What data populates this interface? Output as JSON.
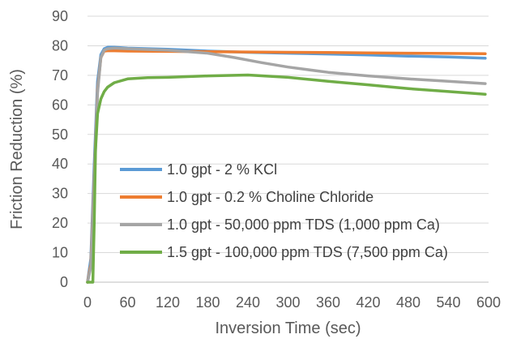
{
  "chart_data": {
    "type": "line",
    "title": "",
    "xlabel": "Inversion Time (sec)",
    "ylabel": "Friction Reduction (%)",
    "xlim": [
      0,
      600
    ],
    "ylim": [
      0,
      90
    ],
    "xticks": [
      0,
      60,
      120,
      180,
      240,
      300,
      360,
      420,
      480,
      540,
      600
    ],
    "yticks": [
      0,
      10,
      20,
      30,
      40,
      50,
      60,
      70,
      80,
      90
    ],
    "grid": "horizontal",
    "legend_position": "lower-left inside plot",
    "series": [
      {
        "name": "1.0 gpt - 2 % KCl",
        "color": "#5B9BD5",
        "x": [
          0,
          5,
          10,
          15,
          20,
          25,
          30,
          40,
          60,
          120,
          180,
          240,
          300,
          360,
          420,
          480,
          540,
          595
        ],
        "y": [
          0,
          8,
          40,
          68,
          77,
          79,
          79.5,
          79.5,
          79.2,
          78.8,
          78.2,
          77.8,
          77.5,
          77.2,
          76.9,
          76.5,
          76.2,
          75.8
        ]
      },
      {
        "name": "1.0 gpt - 0.2 % Choline Chloride",
        "color": "#ED7D31",
        "x": [
          0,
          5,
          10,
          15,
          20,
          25,
          30,
          40,
          60,
          120,
          180,
          240,
          300,
          360,
          420,
          480,
          540,
          595
        ],
        "y": [
          0,
          6,
          35,
          65,
          76,
          78.2,
          78.3,
          78.3,
          78.2,
          78.1,
          78.0,
          77.9,
          77.8,
          77.7,
          77.6,
          77.5,
          77.4,
          77.3
        ]
      },
      {
        "name": "1.0 gpt - 50,000 ppm TDS (1,000 ppm Ca)",
        "color": "#A5A5A5",
        "x": [
          0,
          5,
          10,
          15,
          20,
          25,
          30,
          40,
          60,
          120,
          180,
          220,
          260,
          300,
          360,
          420,
          480,
          540,
          595
        ],
        "y": [
          0,
          5,
          33,
          64,
          76,
          78.5,
          79,
          79.2,
          79,
          78.5,
          77.5,
          76,
          74.3,
          72.8,
          71,
          69.8,
          68.8,
          68,
          67.2
        ]
      },
      {
        "name": "1.5 gpt - 100,000 ppm TDS (7,500 ppm Ca)",
        "color": "#70AD47",
        "x": [
          0,
          8,
          10,
          12,
          15,
          20,
          25,
          30,
          40,
          60,
          90,
          120,
          180,
          240,
          300,
          360,
          420,
          480,
          540,
          595
        ],
        "y": [
          0,
          0,
          20,
          45,
          57,
          62,
          64.5,
          66,
          67.5,
          68.8,
          69.2,
          69.3,
          69.8,
          70.1,
          69.3,
          68.0,
          66.8,
          65.5,
          64.5,
          63.6
        ]
      }
    ]
  }
}
